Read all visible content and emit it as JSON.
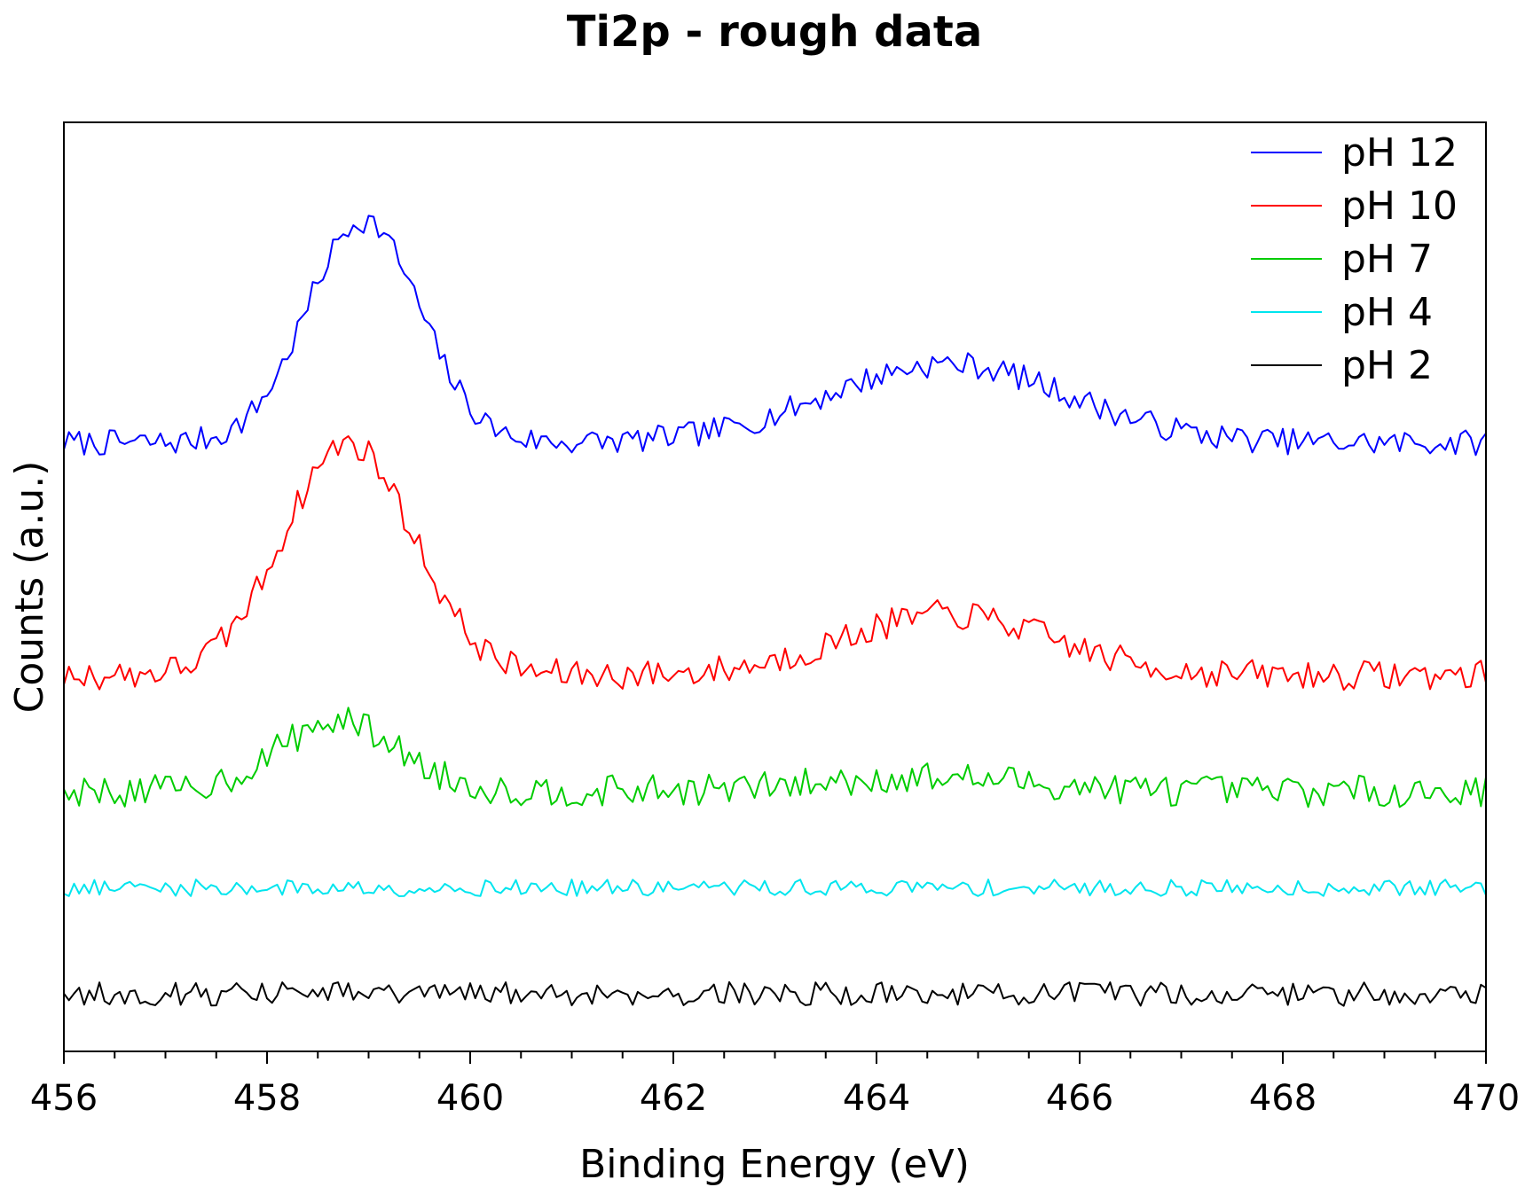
{
  "chart_data": {
    "type": "line",
    "title": "Ti2p - rough data",
    "xlabel": "Binding Energy (eV)",
    "ylabel": "Counts (a.u.)",
    "xlim": [
      456,
      470
    ],
    "ylim": [
      0,
      100
    ],
    "x_ticks": [
      456,
      458,
      460,
      462,
      464,
      466,
      468,
      470
    ],
    "x_minor_step": 0.5,
    "y_ticks_shown": false,
    "grid": false,
    "legend_position": "top-right",
    "x_step": 0.05,
    "noise_seed": 7,
    "series": [
      {
        "name": "pH 12",
        "color": "#0000ff",
        "baseline": 65.5,
        "noise_amplitude": 1.4,
        "peaks": [
          {
            "center": 458.95,
            "height": 24,
            "fwhm": 1.3
          },
          {
            "center": 464.7,
            "height": 8.5,
            "fwhm": 2.8
          }
        ]
      },
      {
        "name": "pH 10",
        "color": "#ff0000",
        "baseline": 40.5,
        "noise_amplitude": 1.6,
        "peaks": [
          {
            "center": 458.8,
            "height": 25,
            "fwhm": 1.5
          },
          {
            "center": 464.7,
            "height": 6.5,
            "fwhm": 2.4
          }
        ]
      },
      {
        "name": "pH 7",
        "color": "#00cc00",
        "baseline": 28,
        "noise_amplitude": 1.7,
        "peaks": [
          {
            "center": 458.7,
            "height": 7.5,
            "fwhm": 1.4
          },
          {
            "center": 464.5,
            "height": 1.5,
            "fwhm": 2.5
          }
        ]
      },
      {
        "name": "pH 4",
        "color": "#00e5ee",
        "baseline": 17.6,
        "noise_amplitude": 0.9,
        "peaks": []
      },
      {
        "name": "pH 2",
        "color": "#000000",
        "baseline": 6.2,
        "noise_amplitude": 1.3,
        "peaks": []
      }
    ]
  }
}
